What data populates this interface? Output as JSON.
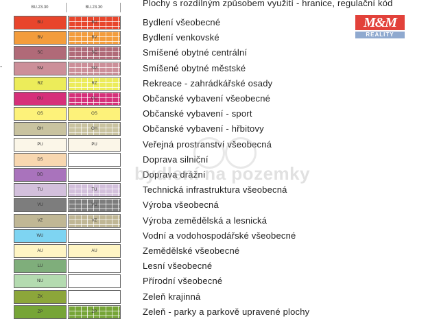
{
  "header": {
    "col1_code": "BU.23.30",
    "col2_code": "BU.23.30",
    "title": "Plochy s rozdílným způsobem využití - hranice, regulační kód"
  },
  "logo": {
    "brand": "M&M",
    "sub": "REALITY",
    "color": "#e2413a"
  },
  "watermark": {
    "text": "bydlení na pozemky"
  },
  "left_mark": "-",
  "legend": [
    {
      "code": "BU",
      "color": "#e8452c",
      "pattern_code": "BU",
      "hatched": true,
      "label": "Bydlení všeobecné"
    },
    {
      "code": "BV",
      "color": "#f39c3c",
      "pattern_code": "BV",
      "hatched": true,
      "label": "Bydlení venkovské"
    },
    {
      "code": "SC",
      "color": "#b06a78",
      "pattern_code": "SC",
      "hatched": true,
      "label": "Smíšené obytné centrální"
    },
    {
      "code": "SM",
      "color": "#cc8f99",
      "pattern_code": "SM",
      "hatched": true,
      "label": "Smíšené obytné městské"
    },
    {
      "code": "RZ",
      "color": "#ecec5a",
      "pattern_code": "RZ",
      "hatched": true,
      "label": "Rekreace - zahrádkářské osady"
    },
    {
      "code": "OU",
      "color": "#d6307a",
      "pattern_code": "OU",
      "hatched": true,
      "label": "Občanské vybavení všeobecné"
    },
    {
      "code": "OS",
      "color": "#fdf27a",
      "pattern_code": "OS",
      "hatched": false,
      "label": "Občanské vybavení - sport"
    },
    {
      "code": "OH",
      "color": "#c9c3a0",
      "pattern_code": "OH",
      "hatched": true,
      "label": "Občanské vybavení - hřbitovy"
    },
    {
      "code": "PU",
      "color": "#fbf6e8",
      "pattern_code": "PU",
      "hatched": false,
      "label": "Veřejná prostranství všeobecná"
    },
    {
      "code": "DS",
      "color": "#f8d7b0",
      "pattern_code": "",
      "hatched": false,
      "label": "Doprava silniční"
    },
    {
      "code": "DD",
      "color": "#a973bc",
      "pattern_code": "",
      "hatched": false,
      "label": "Doprava drážní"
    },
    {
      "code": "TU",
      "color": "#d3c0dc",
      "pattern_code": "TU",
      "hatched": true,
      "label": "Technická infrastruktura všeobecná"
    },
    {
      "code": "VU",
      "color": "#7d7d7d",
      "pattern_code": "VU",
      "hatched": true,
      "label": "Výroba všeobecná"
    },
    {
      "code": "VZ",
      "color": "#c0b795",
      "pattern_code": "VZ",
      "hatched": true,
      "label": "Výroba zemědělská a lesnická"
    },
    {
      "code": "WU",
      "color": "#7ed4f2",
      "pattern_code": "",
      "hatched": false,
      "label": "Vodní a vodohospodářské všeobecné"
    },
    {
      "code": "AU",
      "color": "#fff5c4",
      "pattern_code": "AU",
      "hatched": false,
      "label": "Zemědělské všeobecné"
    },
    {
      "code": "LU",
      "color": "#7fae7b",
      "pattern_code": "",
      "hatched": false,
      "label": "Lesní všeobecné"
    },
    {
      "code": "NU",
      "color": "#b4dbb0",
      "pattern_code": "",
      "hatched": false,
      "label": "Přírodní všeobecné"
    },
    {
      "code": "ZK",
      "color": "#8ca63a",
      "pattern_code": "",
      "hatched": false,
      "label": "Zeleň krajinná"
    },
    {
      "code": "ZP",
      "color": "#76a537",
      "pattern_code": "ZP",
      "hatched": true,
      "label": "Zeleň - parky a parkově upravené plochy"
    }
  ]
}
